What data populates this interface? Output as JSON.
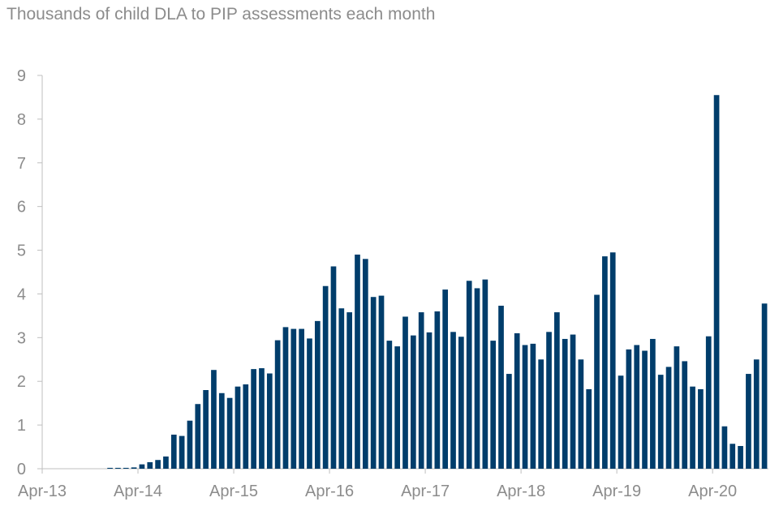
{
  "chart_data": {
    "type": "bar",
    "title": "Thousands of child DLA to PIP assessments each month",
    "xlabel": "",
    "ylabel": "",
    "ylim": [
      0,
      9
    ],
    "yticks": [
      "0",
      "1",
      "2",
      "3",
      "4",
      "5",
      "6",
      "7",
      "8",
      "9"
    ],
    "grid": false,
    "legend": "none",
    "bar_color": "#003d6b",
    "axis_color": "#bfbfbf",
    "text_color": "#8c8c8c",
    "xtick_labels": [
      {
        "label": "Apr-13",
        "index": 0
      },
      {
        "label": "Apr-14",
        "index": 12
      },
      {
        "label": "Apr-15",
        "index": 24
      },
      {
        "label": "Apr-16",
        "index": 36
      },
      {
        "label": "Apr-17",
        "index": 48
      },
      {
        "label": "Apr-18",
        "index": 60
      },
      {
        "label": "Apr-19",
        "index": 72
      },
      {
        "label": "Apr-20",
        "index": 84
      }
    ],
    "categories": [
      "Apr-13",
      "May-13",
      "Jun-13",
      "Jul-13",
      "Aug-13",
      "Sep-13",
      "Oct-13",
      "Nov-13",
      "Dec-13",
      "Jan-14",
      "Feb-14",
      "Mar-14",
      "Apr-14",
      "May-14",
      "Jun-14",
      "Jul-14",
      "Aug-14",
      "Sep-14",
      "Oct-14",
      "Nov-14",
      "Dec-14",
      "Jan-15",
      "Feb-15",
      "Mar-15",
      "Apr-15",
      "May-15",
      "Jun-15",
      "Jul-15",
      "Aug-15",
      "Sep-15",
      "Oct-15",
      "Nov-15",
      "Dec-15",
      "Jan-16",
      "Feb-16",
      "Mar-16",
      "Apr-16",
      "May-16",
      "Jun-16",
      "Jul-16",
      "Aug-16",
      "Sep-16",
      "Oct-16",
      "Nov-16",
      "Dec-16",
      "Jan-17",
      "Feb-17",
      "Mar-17",
      "Apr-17",
      "May-17",
      "Jun-17",
      "Jul-17",
      "Aug-17",
      "Sep-17",
      "Oct-17",
      "Nov-17",
      "Dec-17",
      "Jan-18",
      "Feb-18",
      "Mar-18",
      "Apr-18",
      "May-18",
      "Jun-18",
      "Jul-18",
      "Aug-18",
      "Sep-18",
      "Oct-18",
      "Nov-18",
      "Dec-18",
      "Jan-19",
      "Feb-19",
      "Mar-19",
      "Apr-19",
      "May-19",
      "Jun-19",
      "Jul-19",
      "Aug-19",
      "Sep-19",
      "Oct-19",
      "Nov-19",
      "Dec-19",
      "Jan-20",
      "Feb-20",
      "Mar-20",
      "Apr-20",
      "May-20",
      "Jun-20",
      "Jul-20",
      "Aug-20",
      "Sep-20",
      "Oct-20"
    ],
    "values": [
      0,
      0,
      0,
      0,
      0,
      0,
      0,
      0,
      0.02,
      0.02,
      0.02,
      0.03,
      0.1,
      0.15,
      0.2,
      0.28,
      0.78,
      0.75,
      1.1,
      1.48,
      1.8,
      2.26,
      1.73,
      1.62,
      1.88,
      1.93,
      2.28,
      2.3,
      2.18,
      2.94,
      3.24,
      3.2,
      3.2,
      2.98,
      3.38,
      4.18,
      4.63,
      3.67,
      3.58,
      4.9,
      4.8,
      3.93,
      3.96,
      2.93,
      2.8,
      3.48,
      3.05,
      3.58,
      3.12,
      3.6,
      4.1,
      3.13,
      3.02,
      4.3,
      4.13,
      4.33,
      2.93,
      3.73,
      2.17,
      3.1,
      2.83,
      2.86,
      2.5,
      3.13,
      3.58,
      2.97,
      3.07,
      2.5,
      1.82,
      3.98,
      4.86,
      4.95,
      2.13,
      2.73,
      2.83,
      2.7,
      2.97,
      2.15,
      2.33,
      2.8,
      2.46,
      1.88,
      1.82,
      3.03,
      8.55,
      0.97,
      0.57,
      0.52,
      2.17,
      2.5,
      3.78
    ]
  }
}
